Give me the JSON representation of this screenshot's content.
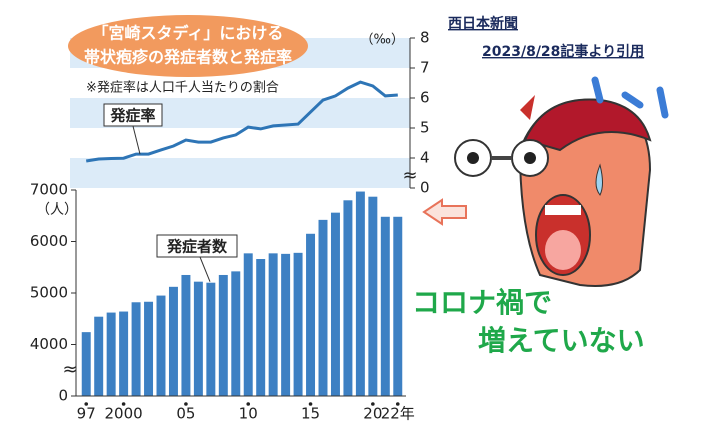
{
  "title": [
    "「宮崎スタディ」における",
    "帯状疱疹の発症者数と発症率"
  ],
  "source": {
    "publisher": "西日本新聞",
    "citation": "2023/8/28記事より引用"
  },
  "callout": [
    "コロナ禍で",
    "増えていない"
  ],
  "chart_data": [
    {
      "type": "line",
      "label": "発症率",
      "note": "※発症率は人口千人当たりの割合",
      "y_unit": "（‰）",
      "color": "#2e75b6",
      "band_color": "#dcebf8",
      "bands": true,
      "ylim": [
        0,
        8
      ],
      "yticks": [
        0,
        4,
        5,
        6,
        7,
        8
      ],
      "axis_break": [
        0,
        4
      ],
      "values": [
        3.6,
        3.87,
        3.93,
        3.97,
        4.13,
        4.13,
        4.27,
        4.4,
        4.6,
        4.53,
        4.53,
        4.67,
        4.77,
        5.03,
        4.97,
        5.07,
        5.1,
        5.13,
        5.53,
        5.93,
        6.07,
        6.33,
        6.53,
        6.4,
        6.07,
        6.1
      ]
    },
    {
      "type": "bar",
      "label": "発症者数",
      "y_unit": "（人）",
      "color": "#3d80c3",
      "ylim": [
        0,
        7000
      ],
      "yticks": [
        0,
        4000,
        5000,
        6000,
        7000
      ],
      "axis_break": [
        0,
        4000
      ],
      "categories": [
        "97",
        null,
        null,
        "2000",
        null,
        null,
        null,
        null,
        "05",
        null,
        null,
        null,
        null,
        "10",
        null,
        null,
        null,
        null,
        "15",
        null,
        null,
        null,
        null,
        "20",
        null,
        "22年"
      ],
      "values": [
        4240,
        4540,
        4620,
        4640,
        4820,
        4830,
        4950,
        5120,
        5350,
        5220,
        5200,
        5350,
        5420,
        5770,
        5660,
        5770,
        5760,
        5780,
        6150,
        6420,
        6560,
        6800,
        6970,
        6870,
        6480,
        6480
      ]
    }
  ]
}
